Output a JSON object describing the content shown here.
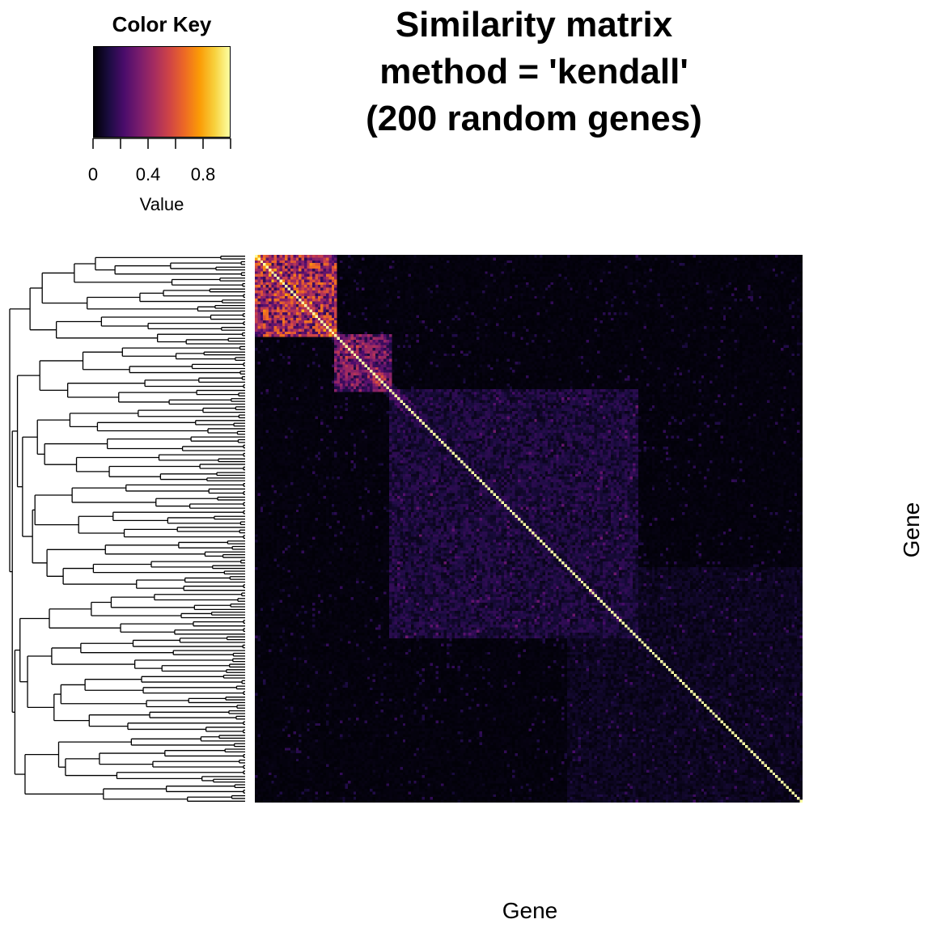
{
  "chart_data": {
    "type": "heatmap",
    "title_lines": [
      "Similarity matrix",
      "method = 'kendall'",
      "(200 random genes)"
    ],
    "xlabel": "Gene",
    "ylabel": "Gene",
    "n_genes": 200,
    "value_range": [
      0,
      1
    ],
    "diagonal_value": 1.0,
    "colormap": "inferno",
    "colormap_stops": [
      "#000004",
      "#1b0c41",
      "#4a0c6b",
      "#781c6d",
      "#a52c60",
      "#cf4446",
      "#ed6925",
      "#fb9b06",
      "#f7d13d",
      "#fcffa4"
    ],
    "row_dendrogram": "left",
    "high_similarity_blocks": [
      {
        "genes": [
          1,
          30
        ],
        "level": 0.5
      },
      {
        "genes": [
          30,
          50
        ],
        "level": 0.35
      },
      {
        "genes": [
          50,
          140
        ],
        "level": 0.12
      },
      {
        "genes": [
          115,
          200
        ],
        "level": 0.06
      }
    ],
    "background_level": 0.02,
    "color_key": {
      "title": "Color Key",
      "xlabel": "Value",
      "tick_labels": [
        "0",
        "0.4",
        "0.8"
      ],
      "tick_values": [
        0,
        0.4,
        0.8
      ],
      "minor_tick_values": [
        0,
        0.2,
        0.4,
        0.6,
        0.8,
        1.0
      ]
    }
  }
}
